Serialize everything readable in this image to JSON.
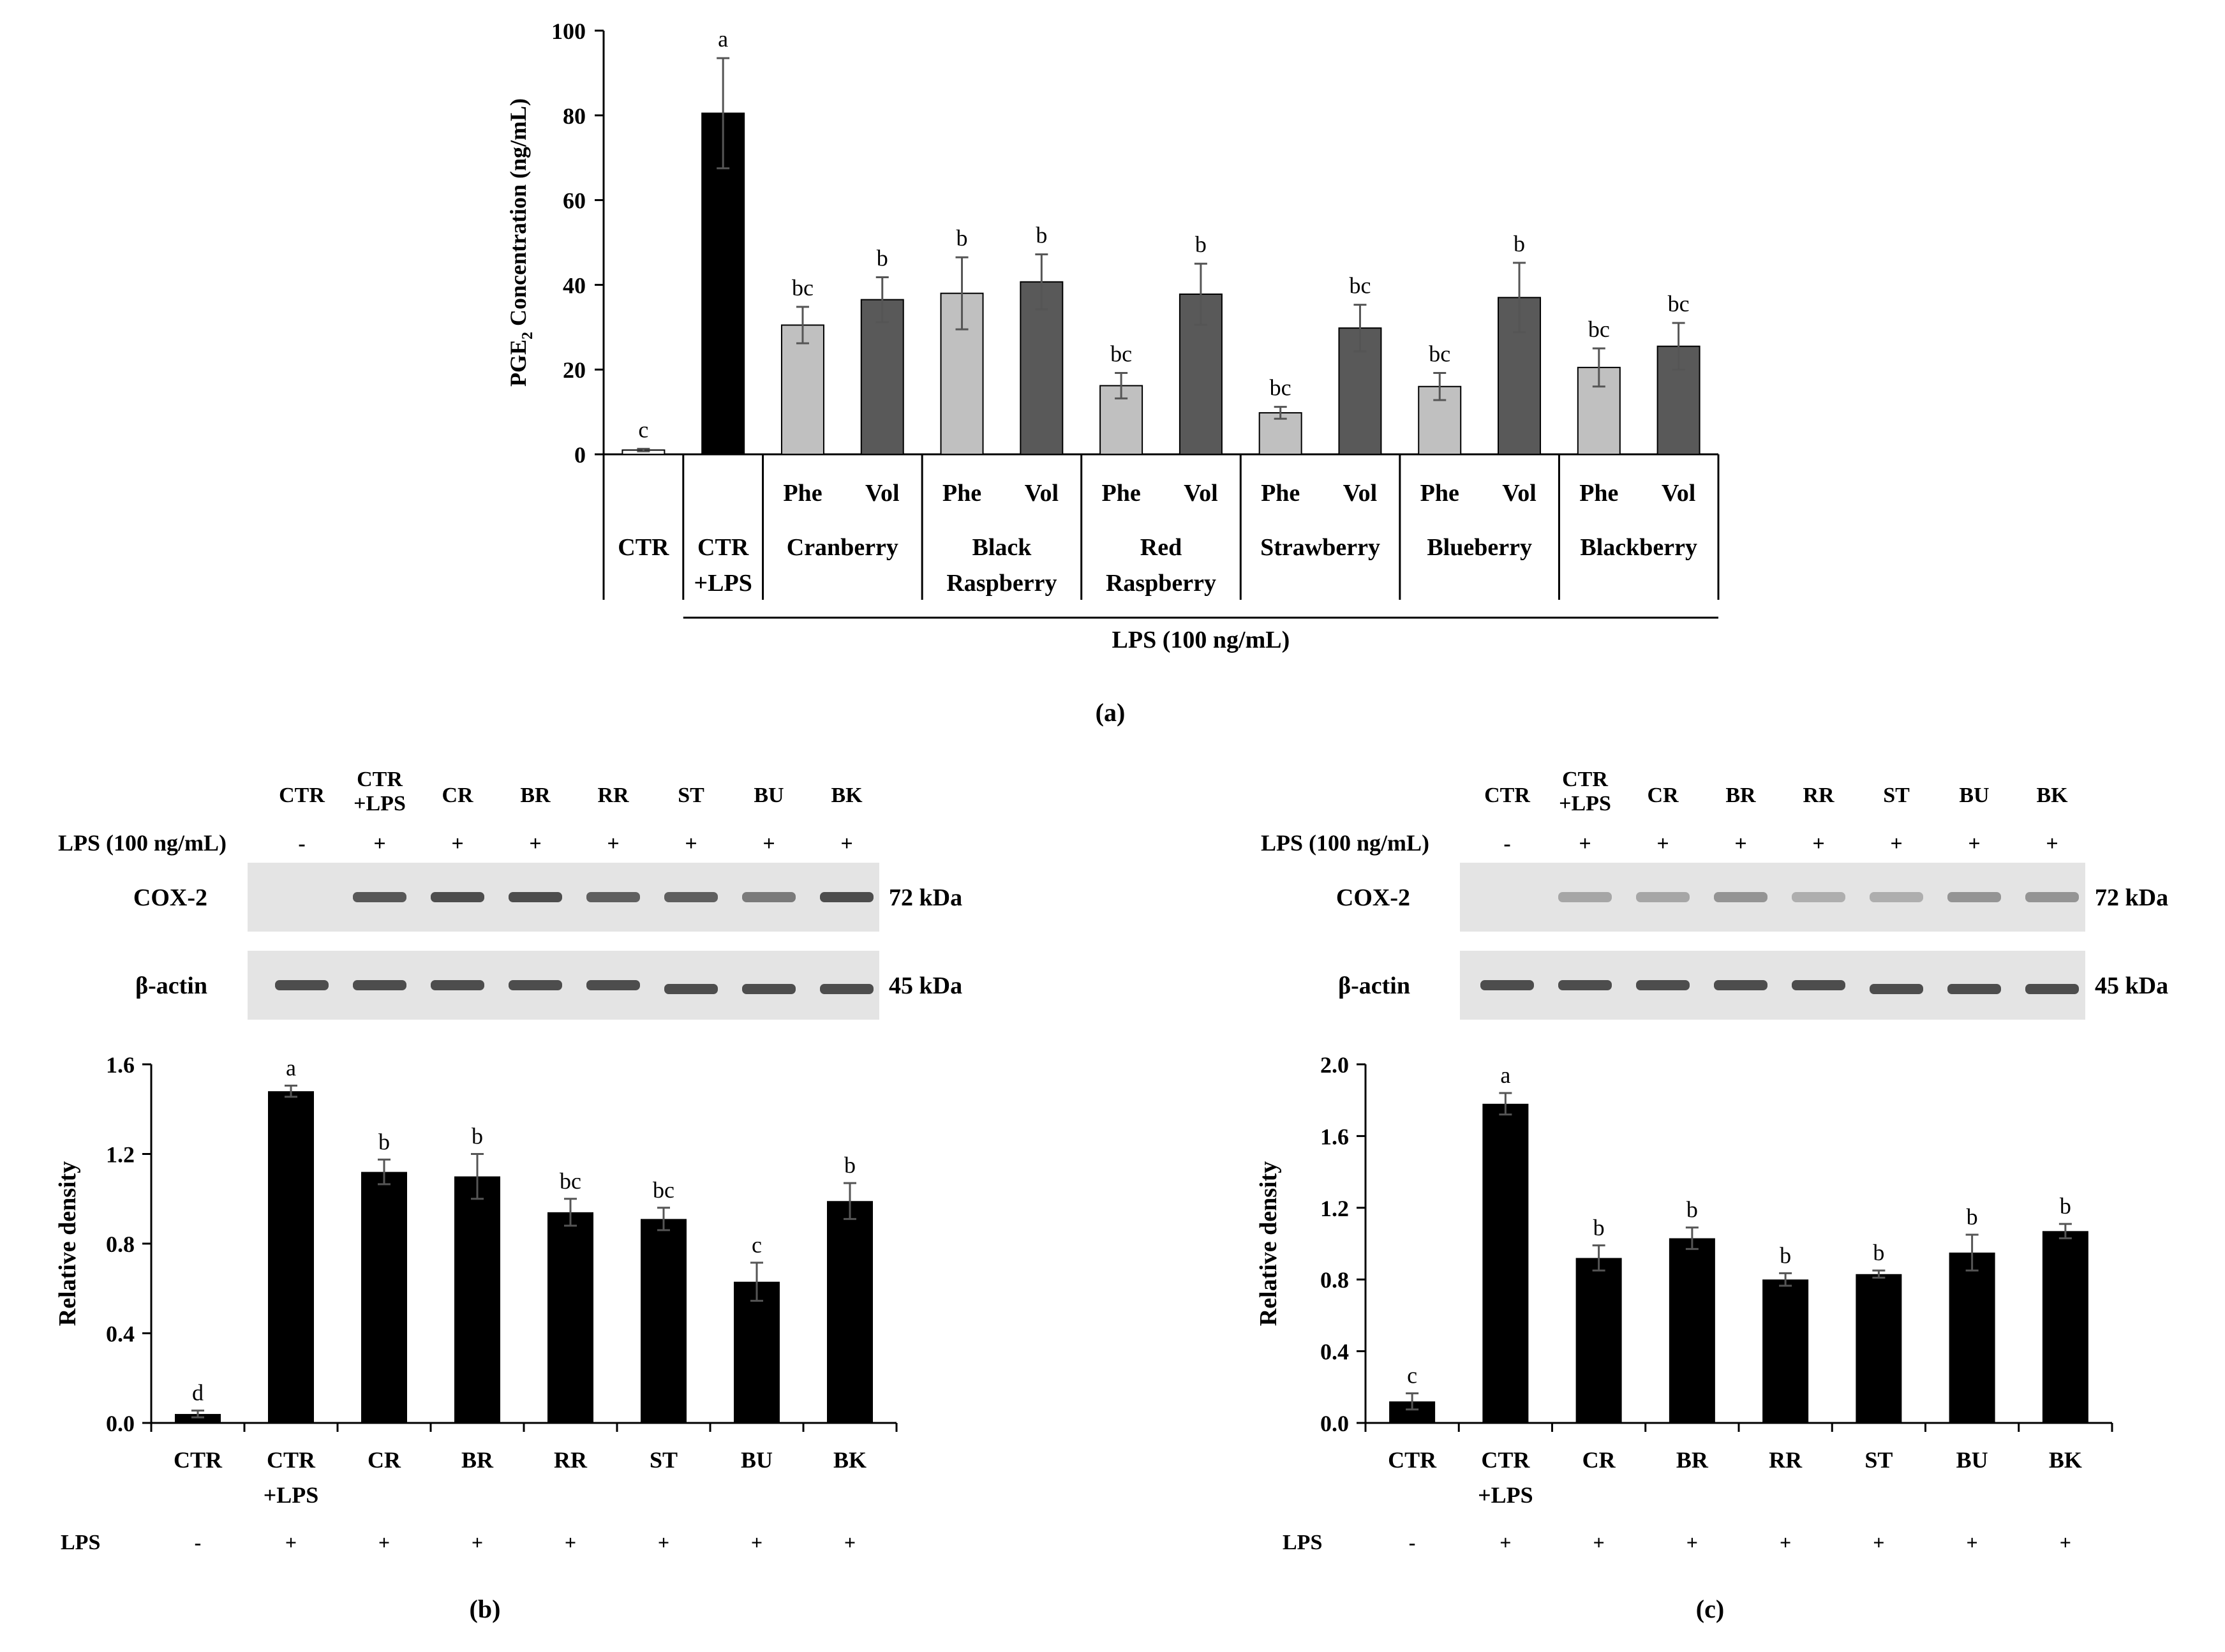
{
  "chart_data": [
    {
      "type": "bar",
      "panel_label": "(a)",
      "ylabel_main": "PGE",
      "ylabel_sub": "2",
      "ylabel_rest": " Concentration (ng/mL)",
      "ylim": [
        0,
        100
      ],
      "yticks": [
        "0",
        "20",
        "40",
        "60",
        "80",
        "100"
      ],
      "bars": [
        {
          "value": 1,
          "err": 0.3,
          "sig": "c",
          "fill": "#ffffff"
        },
        {
          "value": 80.5,
          "err": 13,
          "sig": "a",
          "fill": "#000000"
        },
        {
          "value": 30.5,
          "err": 4.3,
          "sig": "bc",
          "fill": "#c0c0c0"
        },
        {
          "value": 36.5,
          "err": 5.3,
          "sig": "b",
          "fill": "#595959"
        },
        {
          "value": 38,
          "err": 8.5,
          "sig": "b",
          "fill": "#c0c0c0"
        },
        {
          "value": 40.7,
          "err": 6.5,
          "sig": "b",
          "fill": "#595959"
        },
        {
          "value": 16.2,
          "err": 3,
          "sig": "bc",
          "fill": "#c0c0c0"
        },
        {
          "value": 37.8,
          "err": 7.2,
          "sig": "b",
          "fill": "#595959"
        },
        {
          "value": 9.8,
          "err": 1.4,
          "sig": "bc",
          "fill": "#c0c0c0"
        },
        {
          "value": 29.8,
          "err": 5.5,
          "sig": "bc",
          "fill": "#595959"
        },
        {
          "value": 16,
          "err": 3.2,
          "sig": "bc",
          "fill": "#c0c0c0"
        },
        {
          "value": 37,
          "err": 8.2,
          "sig": "b",
          "fill": "#595959"
        },
        {
          "value": 20.5,
          "err": 4.5,
          "sig": "bc",
          "fill": "#c0c0c0"
        },
        {
          "value": 25.5,
          "err": 5.5,
          "sig": "bc",
          "fill": "#595959"
        }
      ],
      "groups": [
        {
          "label": "CTR",
          "sub": []
        },
        {
          "label": "CTR\n+LPS",
          "sub": []
        },
        {
          "label": "Cranberry",
          "sub": [
            "Phe",
            "Vol"
          ]
        },
        {
          "label": "Black\nRaspberry",
          "sub": [
            "Phe",
            "Vol"
          ]
        },
        {
          "label": "Red\nRaspberry",
          "sub": [
            "Phe",
            "Vol"
          ]
        },
        {
          "label": "Strawberry",
          "sub": [
            "Phe",
            "Vol"
          ]
        },
        {
          "label": "Blueberry",
          "sub": [
            "Phe",
            "Vol"
          ]
        },
        {
          "label": "Blackberry",
          "sub": [
            "Phe",
            "Vol"
          ]
        }
      ],
      "treatment_label": "LPS (100 ng/mL)"
    },
    {
      "type": "bar",
      "panel_label": "(b)",
      "blot_headers": [
        "CTR",
        "CTR\n+LPS",
        "CR",
        "BR",
        "RR",
        "ST",
        "BU",
        "BK"
      ],
      "blot_lps_label": "LPS (100 ng/mL)",
      "blot_lps_signs": [
        "-",
        "+",
        "+",
        "+",
        "+",
        "+",
        "+",
        "+"
      ],
      "blots": [
        {
          "name": "COX-2",
          "size": "72 kDa"
        },
        {
          "name": "β-actin",
          "size": "45 kDa"
        }
      ],
      "ylabel": "Relative density",
      "ylim": [
        0,
        1.6
      ],
      "yticks": [
        "0.0",
        "0.4",
        "0.8",
        "1.2",
        "1.6"
      ],
      "categories": [
        "CTR",
        "CTR\n+LPS",
        "CR",
        "BR",
        "RR",
        "ST",
        "BU",
        "BK"
      ],
      "values": [
        0.04,
        1.48,
        1.12,
        1.1,
        0.94,
        0.91,
        0.63,
        0.99
      ],
      "errors": [
        0.015,
        0.025,
        0.055,
        0.1,
        0.06,
        0.05,
        0.085,
        0.08
      ],
      "sig": [
        "d",
        "a",
        "b",
        "b",
        "bc",
        "bc",
        "c",
        "b"
      ],
      "lps_label": "LPS",
      "lps_signs": [
        "-",
        "+",
        "+",
        "+",
        "+",
        "+",
        "+",
        "+"
      ]
    },
    {
      "type": "bar",
      "panel_label": "(c)",
      "blot_headers": [
        "CTR",
        "CTR\n+LPS",
        "CR",
        "BR",
        "RR",
        "ST",
        "BU",
        "BK"
      ],
      "blot_lps_label": "LPS (100 ng/mL)",
      "blot_lps_signs": [
        "-",
        "+",
        "+",
        "+",
        "+",
        "+",
        "+",
        "+"
      ],
      "blots": [
        {
          "name": "COX-2",
          "size": "72 kDa"
        },
        {
          "name": "β-actin",
          "size": "45 kDa"
        }
      ],
      "ylabel": "Relative density",
      "ylim": [
        0,
        2.0
      ],
      "yticks": [
        "0.0",
        "0.4",
        "0.8",
        "1.2",
        "1.6",
        "2.0"
      ],
      "categories": [
        "CTR",
        "CTR\n+LPS",
        "CR",
        "BR",
        "RR",
        "ST",
        "BU",
        "BK"
      ],
      "values": [
        0.12,
        1.78,
        0.92,
        1.03,
        0.8,
        0.83,
        0.95,
        1.07
      ],
      "errors": [
        0.045,
        0.06,
        0.07,
        0.06,
        0.035,
        0.02,
        0.1,
        0.04
      ],
      "sig": [
        "c",
        "a",
        "b",
        "b",
        "b",
        "b",
        "b",
        "b"
      ],
      "lps_label": "LPS",
      "lps_signs": [
        "-",
        "+",
        "+",
        "+",
        "+",
        "+",
        "+",
        "+"
      ]
    }
  ]
}
